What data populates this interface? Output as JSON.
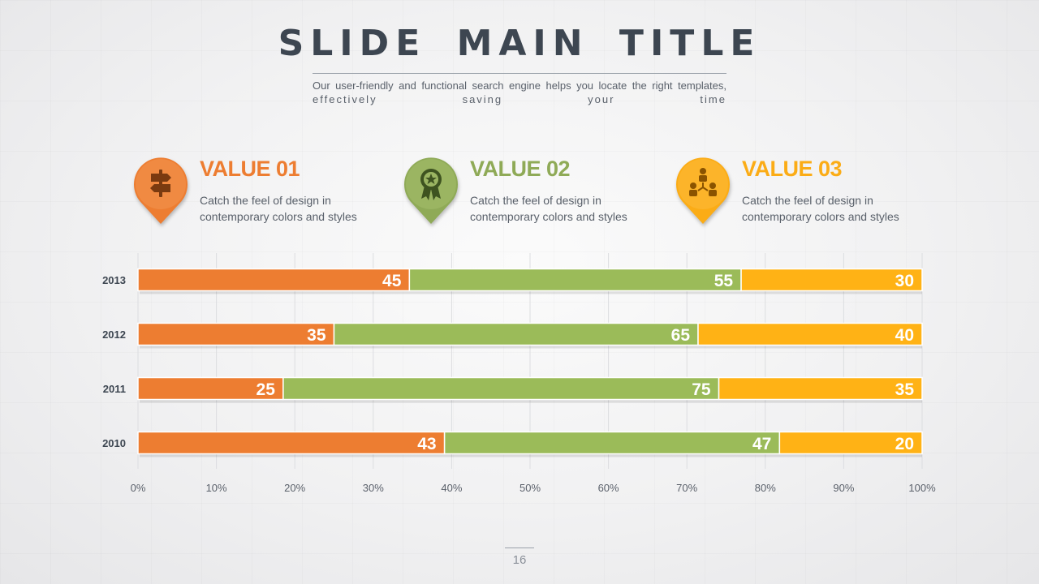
{
  "slide": {
    "title": "SLIDE MAIN TITLE",
    "subtitle_line1": "Our user-friendly and functional search engine helps you locate the right templates,",
    "subtitle_line2": "effectively saving your time",
    "page_number": "16"
  },
  "values": [
    {
      "title": "VALUE 01",
      "desc_line1": "Catch the feel of design in",
      "desc_line2": "contemporary colors and styles",
      "color": "#ed7d31",
      "icon": "signpost-icon"
    },
    {
      "title": "VALUE 02",
      "desc_line1": "Catch the feel of design in",
      "desc_line2": "contemporary colors and styles",
      "color": "#8faa57",
      "icon": "award-badge-icon"
    },
    {
      "title": "VALUE 03",
      "desc_line1": "Catch the feel of design in",
      "desc_line2": "contemporary colors and styles",
      "color": "#fbac16",
      "icon": "team-network-icon"
    }
  ],
  "chart_data": {
    "type": "bar",
    "orientation": "horizontal",
    "stacking": "percent",
    "categories": [
      "2013",
      "2012",
      "2011",
      "2010"
    ],
    "series": [
      {
        "values": [
          45,
          35,
          25,
          43
        ],
        "color": "#ed7d31"
      },
      {
        "values": [
          55,
          65,
          75,
          47
        ],
        "color": "#9bbb59"
      },
      {
        "values": [
          30,
          40,
          35,
          20
        ],
        "color": "#ffb215"
      }
    ],
    "x_ticks": [
      "0%",
      "10%",
      "20%",
      "30%",
      "40%",
      "50%",
      "60%",
      "70%",
      "80%",
      "90%",
      "100%"
    ],
    "xlim": [
      0,
      100
    ],
    "grid": true,
    "data_labels": true,
    "legend": "none"
  }
}
